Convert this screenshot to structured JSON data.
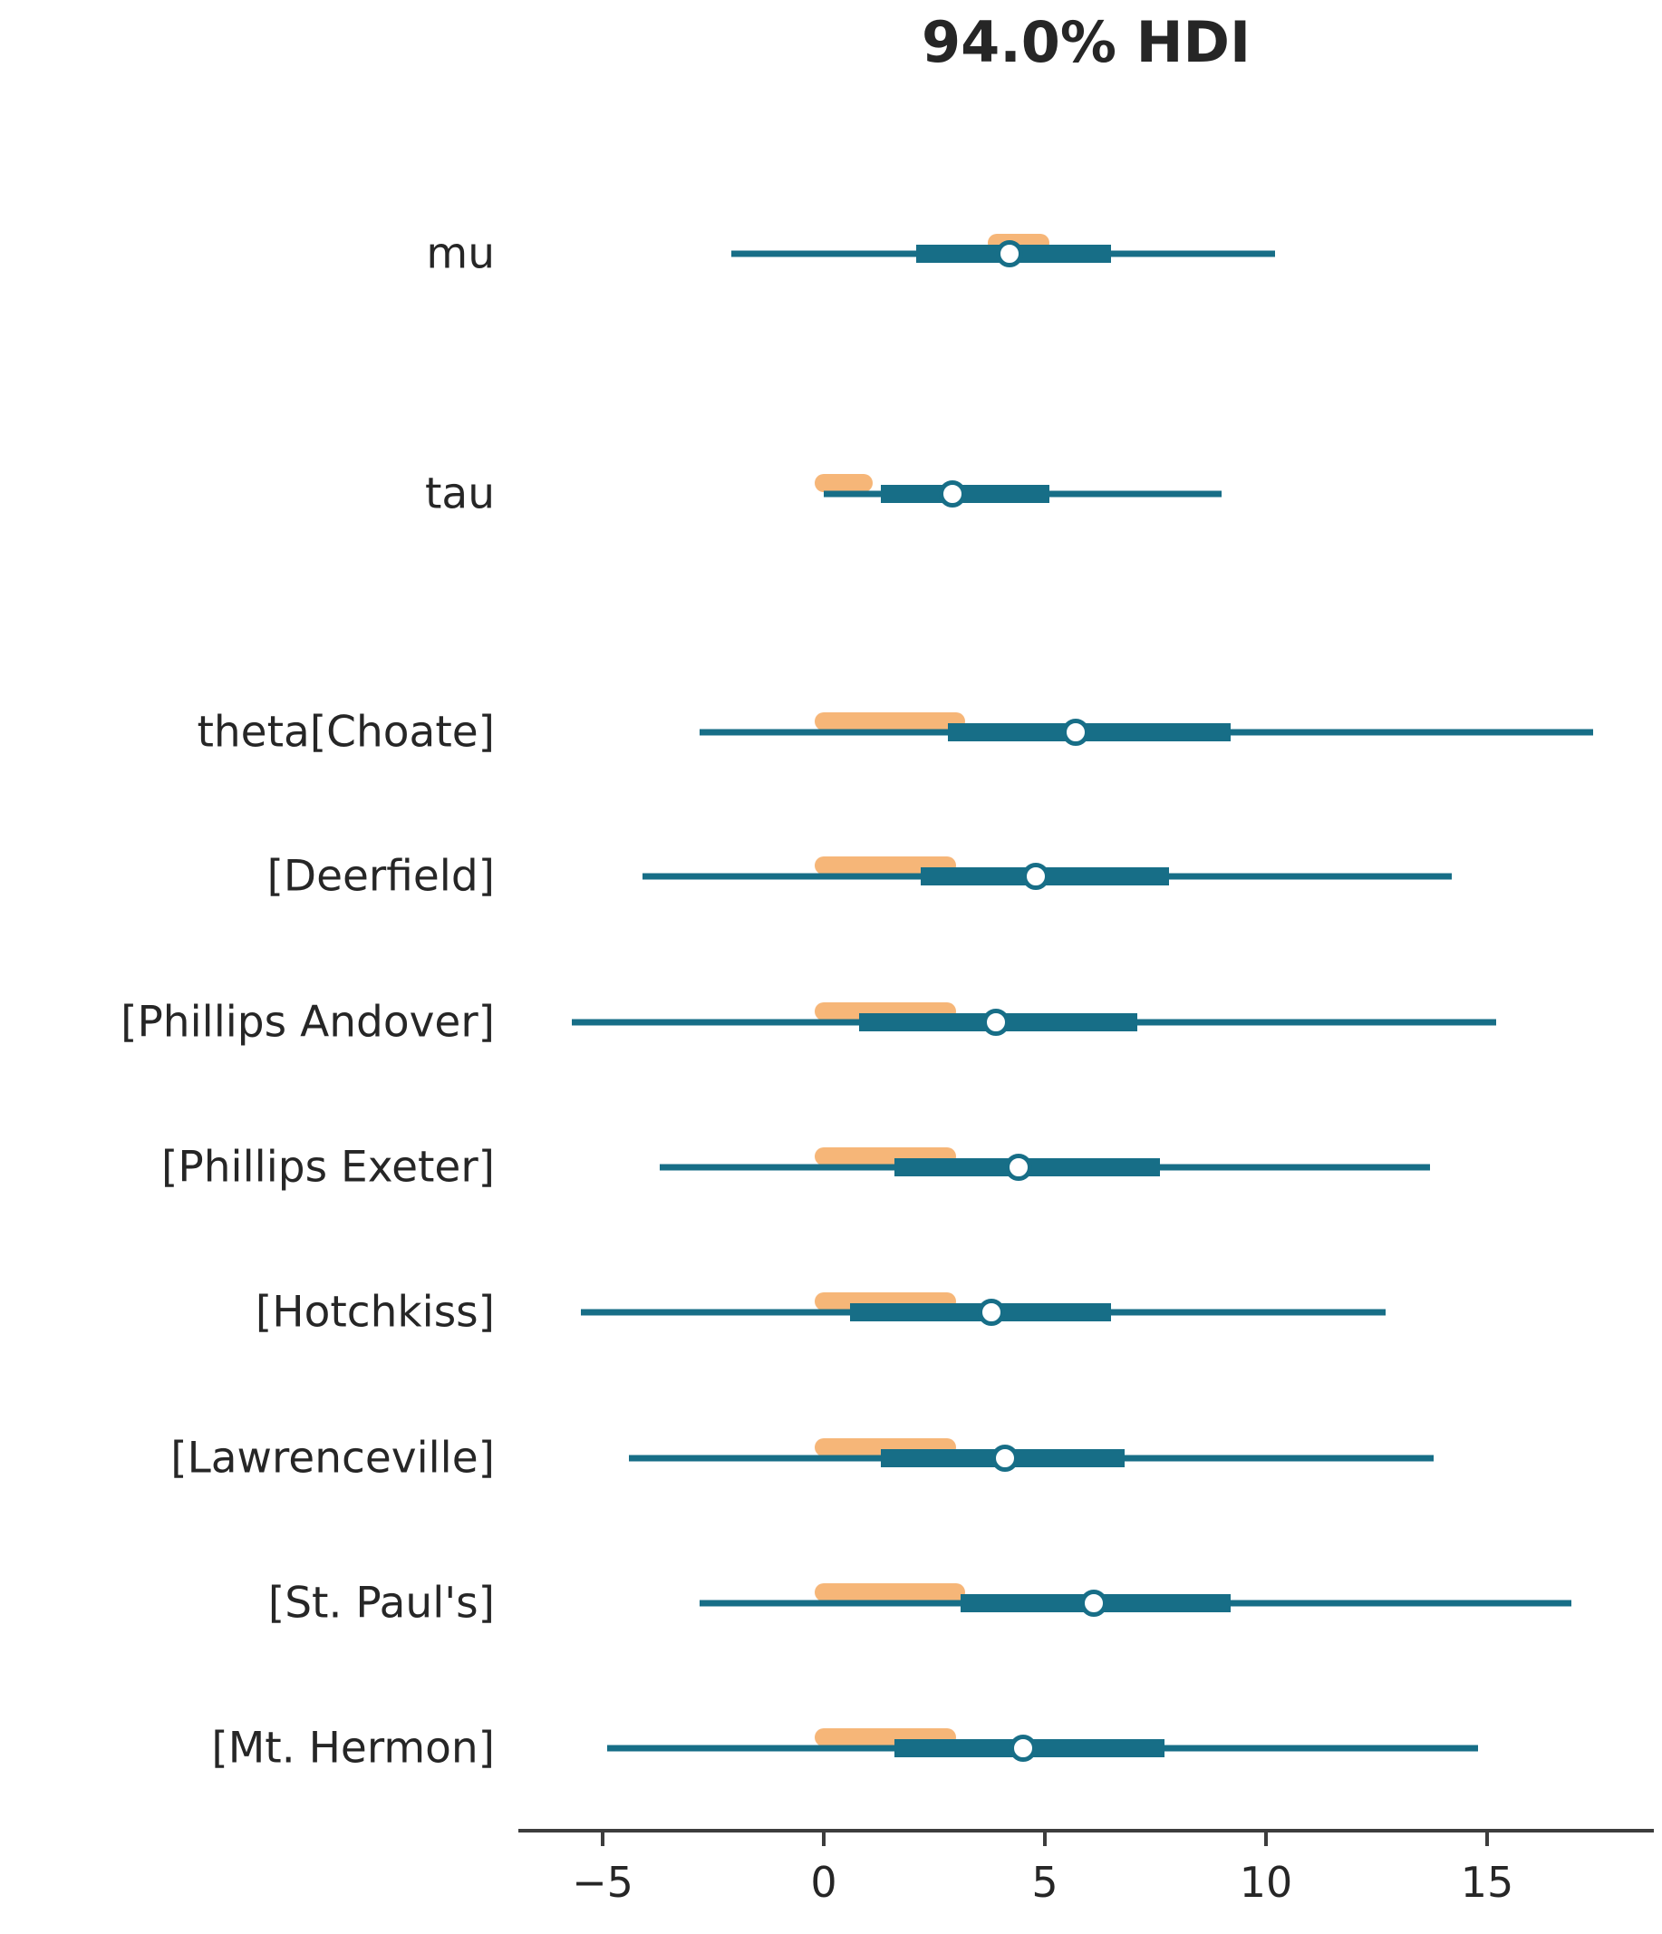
{
  "title": "94.0% HDI",
  "chart_data": {
    "type": "forest",
    "title": "94.0% HDI",
    "xlabel": "",
    "ylabel": "",
    "grid": false,
    "legend_position": "none",
    "xlim": [
      -6.9,
      18.8
    ],
    "x_ticks": [
      -5,
      0,
      5,
      10,
      15
    ],
    "x_tick_labels": [
      "−5",
      "0",
      "5",
      "10",
      "15"
    ],
    "hdi_probability_label": "94.0% HDI",
    "colors": {
      "interval": "#176e87",
      "rope": "#f6b678",
      "marker_face": "#ffffff",
      "text": "#262626",
      "axis": "#3d3d3d"
    },
    "rows": [
      {
        "label": "mu",
        "hdi_94": [
          -2.1,
          10.2
        ],
        "iqr": [
          2.1,
          6.5
        ],
        "median": 4.2,
        "rope": [
          3.7,
          5.1
        ]
      },
      {
        "label": "tau",
        "hdi_94": [
          0.0,
          9.0
        ],
        "iqr": [
          1.3,
          5.1
        ],
        "median": 2.9,
        "rope": [
          -0.2,
          1.1
        ]
      },
      {
        "label": "theta[Choate]",
        "hdi_94": [
          -2.8,
          17.4
        ],
        "iqr": [
          2.8,
          9.2
        ],
        "median": 5.7,
        "rope": [
          -0.2,
          3.2
        ]
      },
      {
        "label": "[Deerfield]",
        "hdi_94": [
          -4.1,
          14.2
        ],
        "iqr": [
          2.2,
          7.8
        ],
        "median": 4.8,
        "rope": [
          -0.2,
          3.0
        ]
      },
      {
        "label": "[Phillips Andover]",
        "hdi_94": [
          -5.7,
          15.2
        ],
        "iqr": [
          0.8,
          7.1
        ],
        "median": 3.9,
        "rope": [
          -0.2,
          3.0
        ]
      },
      {
        "label": "[Phillips Exeter]",
        "hdi_94": [
          -3.7,
          13.7
        ],
        "iqr": [
          1.6,
          7.6
        ],
        "median": 4.4,
        "rope": [
          -0.2,
          3.0
        ]
      },
      {
        "label": "[Hotchkiss]",
        "hdi_94": [
          -5.5,
          12.7
        ],
        "iqr": [
          0.6,
          6.5
        ],
        "median": 3.8,
        "rope": [
          -0.2,
          3.0
        ]
      },
      {
        "label": "[Lawrenceville]",
        "hdi_94": [
          -4.4,
          13.8
        ],
        "iqr": [
          1.3,
          6.8
        ],
        "median": 4.1,
        "rope": [
          -0.2,
          3.0
        ]
      },
      {
        "label": "[St. Paul's]",
        "hdi_94": [
          -2.8,
          16.9
        ],
        "iqr": [
          3.1,
          9.2
        ],
        "median": 6.1,
        "rope": [
          -0.2,
          3.2
        ]
      },
      {
        "label": "[Mt. Hermon]",
        "hdi_94": [
          -4.9,
          14.8
        ],
        "iqr": [
          1.6,
          7.7
        ],
        "median": 4.5,
        "rope": [
          -0.2,
          3.0
        ]
      }
    ]
  }
}
